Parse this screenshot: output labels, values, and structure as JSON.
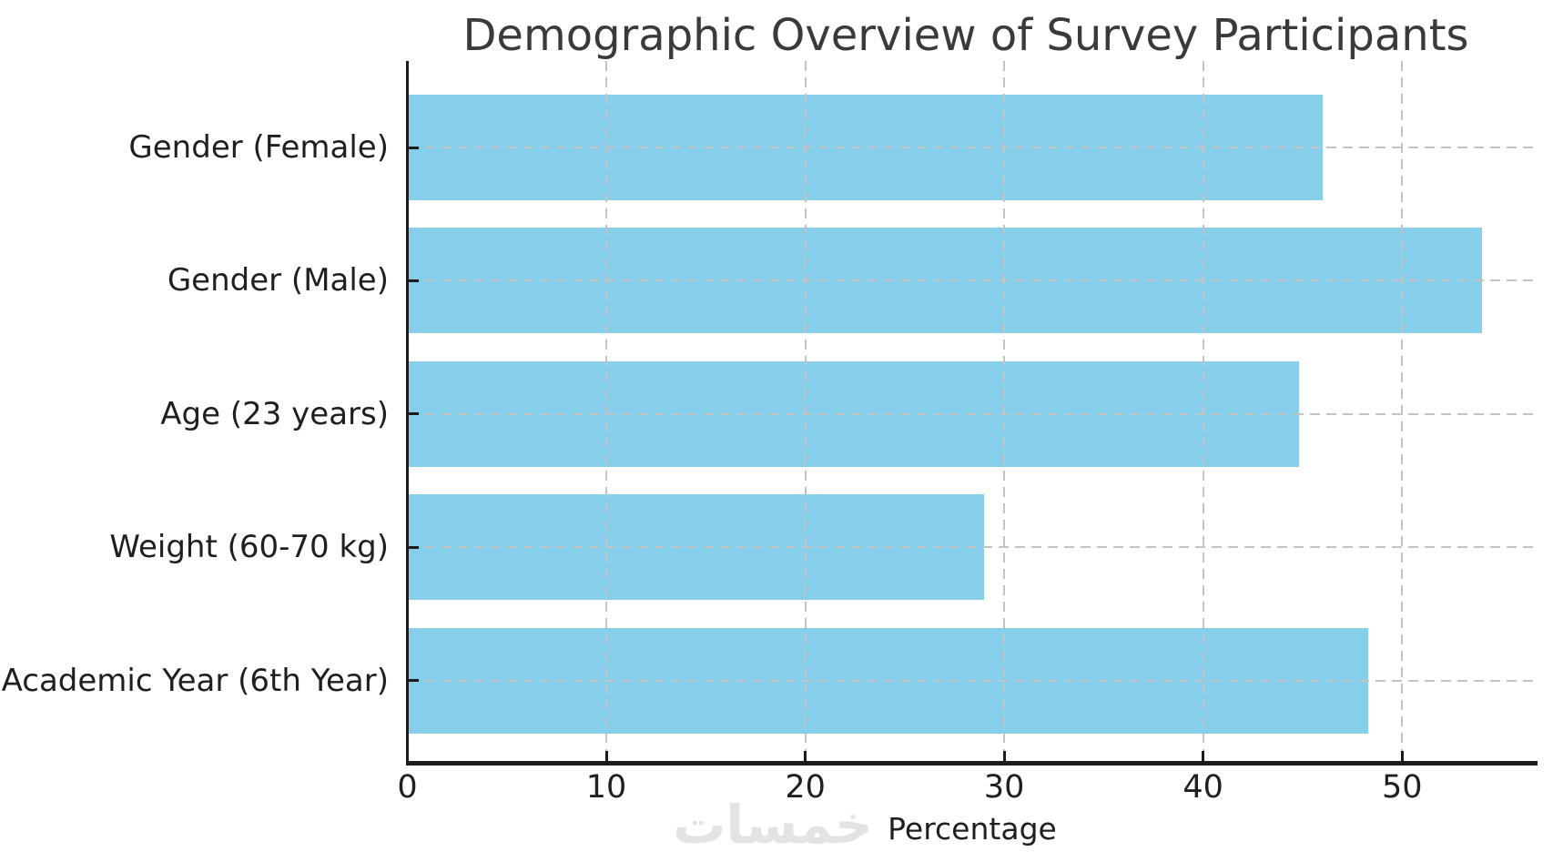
{
  "chart_data": {
    "type": "bar",
    "orientation": "horizontal",
    "title": "Demographic Overview of Survey Participants",
    "xlabel": "Percentage",
    "ylabel": "",
    "categories": [
      "Gender (Female)",
      "Gender (Male)",
      "Age (23 years)",
      "Weight (60-70 kg)",
      "Academic Year (6th Year)"
    ],
    "values": [
      46,
      54,
      44.8,
      29,
      48.3
    ],
    "xticks": [
      0,
      10,
      20,
      30,
      40,
      50
    ],
    "xlim": [
      0,
      56.8
    ],
    "grid": true,
    "grid_style": "dashed",
    "legend": "none",
    "bar_color": "#87CEEB"
  },
  "colors": {
    "background": "#ffffff",
    "bar": "#87CEEB",
    "spine": "#1c1c1c",
    "grid": "#c3c3c3",
    "title_text": "#3a3a3a",
    "tick_text": "#1f1f1f",
    "watermark_text": "#e3e3e3"
  },
  "watermark": {
    "text": "خمسات"
  }
}
